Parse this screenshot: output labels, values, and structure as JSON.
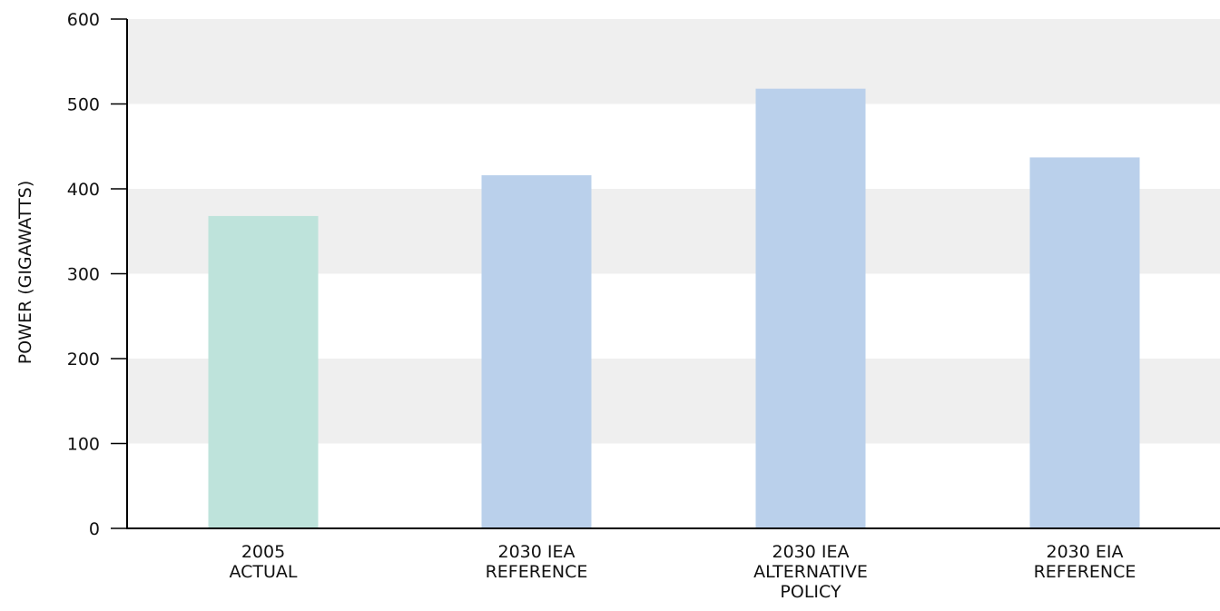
{
  "chart_data": {
    "type": "bar",
    "title": "",
    "xlabel": "",
    "ylabel": "POWER (GIGAWATTS)",
    "ylim": [
      0,
      600
    ],
    "yticks": [
      0,
      100,
      200,
      300,
      400,
      500,
      600
    ],
    "grid": "alternating horizontal bands",
    "categories": [
      [
        "2005",
        "ACTUAL"
      ],
      [
        "2030 IEA",
        "REFERENCE"
      ],
      [
        "2030 IEA",
        "ALTERNATIVE",
        "POLICY"
      ],
      [
        "2030 EIA",
        "REFERENCE"
      ]
    ],
    "values": [
      368,
      416,
      518,
      437
    ],
    "colors": [
      "#bee3db",
      "#bad0eb",
      "#bad0eb",
      "#bad0eb"
    ],
    "band_color": "#efefef",
    "axis_color": "#000000"
  }
}
